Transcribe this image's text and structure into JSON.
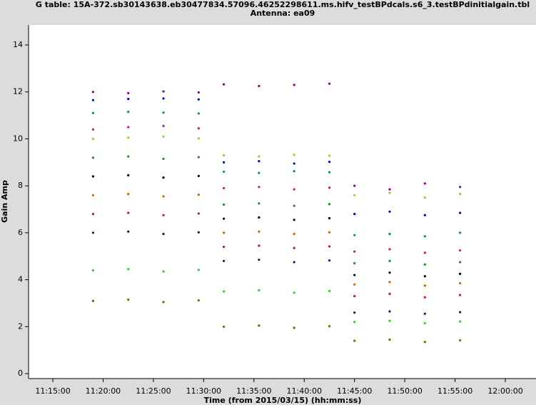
{
  "chart_data": {
    "type": "scatter",
    "title": "G table: 15A-372.sb30143638.eb30477834.57096.46252298611.ms.hifv_testBPdcals.s6_3.testBPdinitialgain.tbl",
    "subtitle": "Antenna: ea09",
    "x_label": "Time (from 2015/03/15) (hh:mm:ss)",
    "y_label": "Gain Amp",
    "xlim": [
      "11:12:35",
      "12:03:03"
    ],
    "xticks": [
      "11:15:00",
      "11:20:00",
      "11:25:00",
      "11:30:00",
      "11:35:00",
      "11:40:00",
      "11:45:00",
      "11:50:00",
      "11:55:00",
      "12:00:00"
    ],
    "ylim": [
      -0.21,
      14.85
    ],
    "yticks": [
      0,
      2,
      4,
      6,
      8,
      10,
      12,
      14
    ],
    "x": [
      "11:19:00",
      "11:22:30",
      "11:26:00",
      "11:29:30",
      "11:32:00",
      "11:35:30",
      "11:39:00",
      "11:42:30",
      "11:45:00",
      "11:48:30",
      "11:52:00",
      "11:55:30"
    ],
    "series": [
      {
        "color": "#8b008b",
        "values": [
          12.0,
          11.95,
          12.02,
          11.98,
          12.32,
          12.25,
          12.3,
          12.35,
          8.0,
          7.85,
          8.1,
          7.95
        ]
      },
      {
        "color": "#0000cd",
        "values": [
          11.65,
          11.7,
          11.72,
          11.68,
          9.0,
          9.05,
          8.95,
          9.02,
          6.8,
          6.9,
          6.75,
          6.85
        ]
      },
      {
        "color": "#008b8b",
        "values": [
          11.1,
          11.15,
          11.12,
          11.08,
          8.6,
          8.55,
          8.62,
          8.58,
          5.9,
          5.95,
          5.85,
          6.0
        ]
      },
      {
        "color": "#c71585",
        "values": [
          10.4,
          10.5,
          10.55,
          10.45,
          7.9,
          7.95,
          7.85,
          7.92,
          5.2,
          5.3,
          5.15,
          5.25
        ]
      },
      {
        "color": "#9acd32",
        "values": [
          10.0,
          10.05,
          10.1,
          10.02,
          9.3,
          9.25,
          9.32,
          9.28,
          7.6,
          7.7,
          7.5,
          7.65
        ]
      },
      {
        "color": "#228b22",
        "values": [
          9.2,
          9.25,
          9.15,
          9.22,
          7.2,
          7.25,
          7.15,
          7.22,
          4.7,
          4.8,
          4.65,
          4.75
        ]
      },
      {
        "color": "#000000",
        "values": [
          8.4,
          8.45,
          8.35,
          8.42,
          6.6,
          6.65,
          6.55,
          6.62,
          4.2,
          4.3,
          4.15,
          4.25
        ]
      },
      {
        "color": "#cd6600",
        "values": [
          7.6,
          7.65,
          7.55,
          7.62,
          6.0,
          6.05,
          5.95,
          6.02,
          3.8,
          3.9,
          3.75,
          3.85
        ]
      },
      {
        "color": "#b22222",
        "values": [
          6.8,
          6.85,
          6.75,
          6.82,
          5.4,
          5.45,
          5.35,
          5.42,
          3.3,
          3.4,
          3.25,
          3.35
        ]
      },
      {
        "color": "#191970",
        "values": [
          6.0,
          6.05,
          5.95,
          6.02,
          4.8,
          4.85,
          4.75,
          4.82,
          2.6,
          2.65,
          2.55,
          2.62
        ]
      },
      {
        "color": "#32cd32",
        "values": [
          4.4,
          4.45,
          4.35,
          4.42,
          3.5,
          3.55,
          3.45,
          3.52,
          2.2,
          2.25,
          2.15,
          2.22
        ]
      },
      {
        "color": "#8b5a00",
        "values": [
          3.1,
          3.15,
          3.05,
          3.12,
          2.0,
          2.05,
          1.95,
          2.02,
          1.4,
          1.45,
          1.35,
          1.42
        ]
      }
    ]
  }
}
